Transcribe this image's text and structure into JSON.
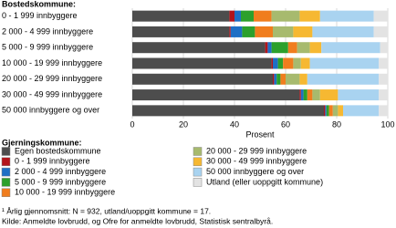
{
  "chart_data": {
    "type": "stacked-bar-horizontal",
    "axis_title": "Bostedskommune:",
    "xlabel": "Prosent",
    "legend_title": "Gjerningskommune:",
    "categories": [
      "0 - 1 999 innbyggere",
      "2 000 - 4 999 innbyggere",
      "5 000 - 9 999 innbyggere",
      "10 000 - 19 999 innbyggere",
      "20 000 - 29 999 innbyggere",
      "30 000 - 49 999 innbyggere",
      "50 000 innbyggere og over"
    ],
    "series": [
      {
        "name": "Egen bostedskommune",
        "color": "#4d4d4d",
        "values": [
          38,
          38,
          52,
          54.5,
          55,
          65.5,
          75
        ]
      },
      {
        "name": "0 - 1 999 innbyggere",
        "color": "#b3141b",
        "values": [
          2,
          0.5,
          1,
          0.5,
          0.5,
          0.5,
          0.5
        ]
      },
      {
        "name": "2 000 - 4 999 innbyggere",
        "color": "#1f6fc5",
        "values": [
          2.5,
          4.5,
          1.5,
          2,
          1,
          1,
          0.5
        ]
      },
      {
        "name": "5 000 - 9 999 innbyggere",
        "color": "#2ca02c",
        "values": [
          5,
          5,
          6.5,
          2,
          1.5,
          1.5,
          1
        ]
      },
      {
        "name": "10 000 - 19 999 innbyggere",
        "color": "#f07d1e",
        "values": [
          7,
          7,
          3.5,
          4,
          2,
          2,
          1.5
        ]
      },
      {
        "name": "20 000 - 29 999 innbyggere",
        "color": "#a7ba6e",
        "values": [
          11,
          8,
          5,
          3,
          5.5,
          3,
          2
        ]
      },
      {
        "name": "30 000 - 49 999 innbyggere",
        "color": "#f6b832",
        "values": [
          8,
          7.5,
          4.5,
          3.5,
          3,
          7,
          2
        ]
      },
      {
        "name": "50 000 innbyggere og over",
        "color": "#a9d3f0",
        "values": [
          21,
          24,
          23,
          27,
          28,
          16,
          14
        ]
      },
      {
        "name": "Utland (eller uoppgitt kommune)",
        "color": "#e3e3e3",
        "values": [
          5.5,
          5.5,
          3,
          3.5,
          3.5,
          3.5,
          3.5
        ]
      }
    ],
    "xlim": [
      0,
      100
    ],
    "xticks": [
      0,
      20,
      40,
      60,
      80,
      100
    ],
    "grid": true,
    "footnotes": [
      "¹ Årlig gjennomsnitt: N = 932, utland/uoppgitt kommune = 17.",
      "Kilde: Anmeldte lovbrudd, og Ofre for anmeldte lovbrudd, Statistisk sentralbyrå."
    ]
  }
}
